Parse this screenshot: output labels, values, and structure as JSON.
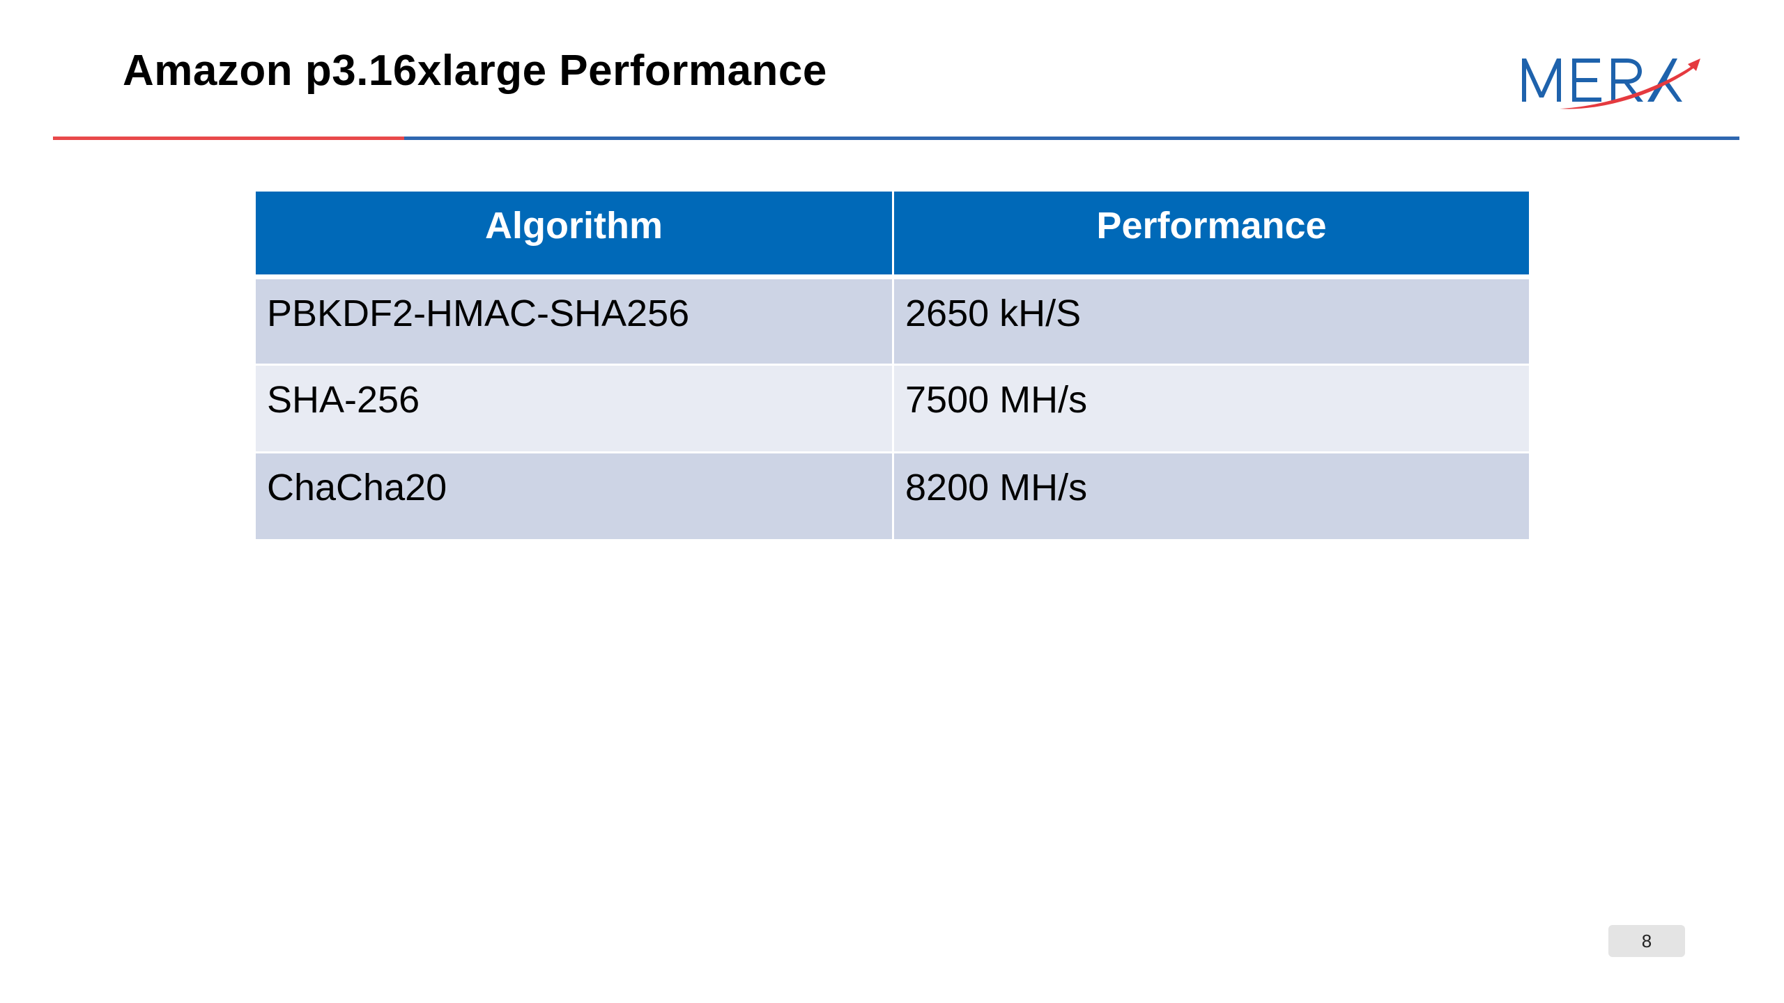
{
  "slide": {
    "title": "Amazon p3.16xlarge Performance",
    "page_number": "8"
  },
  "logo": {
    "text": "MERA",
    "brand_blue": "#1e62ac",
    "brand_red": "#e53a3f"
  },
  "table": {
    "headers": [
      "Algorithm",
      "Performance"
    ],
    "rows": [
      {
        "algorithm": "PBKDF2-HMAC-SHA256",
        "performance": "2650 kH/S"
      },
      {
        "algorithm": "SHA-256",
        "performance": "7500 MH/s"
      },
      {
        "algorithm": "ChaCha20",
        "performance": "8200 MH/s"
      }
    ]
  },
  "colors": {
    "header_bg": "#0069b8",
    "row_dark": "#cdd4e5",
    "row_light": "#e8ebf3",
    "rule_red": "#e8494a",
    "rule_blue": "#2f67b0"
  }
}
